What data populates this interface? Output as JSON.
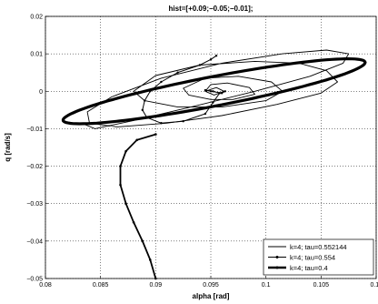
{
  "chart_data": {
    "type": "line",
    "title": "hist=[+0.09;−0.05;−0.01];",
    "xlabel": "alpha [rad]",
    "ylabel": "q [rad/s]",
    "xlim": [
      0.08,
      0.11
    ],
    "ylim": [
      -0.05,
      0.02
    ],
    "xticks": [
      0.08,
      0.085,
      0.09,
      0.095,
      0.1,
      0.105,
      0.11
    ],
    "xtick_labels": [
      "0.08",
      "0.085",
      "0.09",
      "0.095",
      "0.1",
      "0.105",
      "0.11"
    ],
    "yticks": [
      -0.05,
      -0.04,
      -0.03,
      -0.02,
      -0.01,
      0,
      0.01,
      0.02
    ],
    "ytick_labels": [
      "−0.05",
      "−0.04",
      "−0.03",
      "−0.02",
      "−0.01",
      "0",
      "0.01",
      "0.02"
    ],
    "grid": true,
    "legend_position": "bottom-right",
    "series": [
      {
        "name": "k=4; tau=0.552144",
        "style": "thin",
        "x": [
          0.0945,
          0.0955,
          0.0962,
          0.0953,
          0.0945,
          0.095,
          0.0965,
          0.0985,
          0.099,
          0.097,
          0.095,
          0.093,
          0.0925,
          0.0945,
          0.0975,
          0.1005,
          0.1015,
          0.1,
          0.096,
          0.092,
          0.089,
          0.088,
          0.09,
          0.094,
          0.099,
          0.103,
          0.1055,
          0.1065,
          0.105,
          0.101,
          0.096,
          0.091,
          0.0865,
          0.084,
          0.0838,
          0.086,
          0.0905,
          0.096,
          0.1015,
          0.1055,
          0.1075,
          0.107,
          0.104,
          0.099,
          0.0935,
          0.088,
          0.0845,
          0.0835
        ],
        "y": [
          0.0,
          0.001,
          0.0,
          -0.001,
          0.0,
          0.0018,
          0.0022,
          0.001,
          -0.0008,
          -0.0022,
          -0.0022,
          -0.001,
          0.0008,
          0.0035,
          0.004,
          0.0025,
          0.0,
          -0.0025,
          -0.0042,
          -0.0042,
          -0.0025,
          0.0,
          0.0042,
          0.007,
          0.008,
          0.0075,
          0.0055,
          0.0025,
          -0.0005,
          -0.0035,
          -0.0065,
          -0.0085,
          -0.0095,
          -0.0085,
          -0.0055,
          -0.0015,
          0.0035,
          0.0075,
          0.01,
          0.011,
          0.01,
          0.0075,
          0.004,
          0.0,
          -0.004,
          -0.0078,
          -0.01,
          -0.0088
        ]
      },
      {
        "name": "k=4; tau=0.554",
        "style": "dot-marker",
        "x": [
          0.0955,
          0.095,
          0.094,
          0.092,
          0.0905,
          0.0895,
          0.089,
          0.0888,
          0.0892,
          0.0905,
          0.0925,
          0.0945,
          0.0952,
          0.0958,
          0.0963,
          0.096,
          0.095,
          0.0945,
          0.0952
        ],
        "y": [
          0.0095,
          0.0085,
          0.007,
          0.005,
          0.0025,
          0.0,
          -0.0025,
          -0.005,
          -0.007,
          -0.0085,
          -0.008,
          -0.006,
          -0.003,
          -0.0005,
          0.0,
          -0.0005,
          0.0,
          0.0003,
          0.0
        ]
      },
      {
        "name": "k=4; tau=0.4",
        "style": "thick",
        "cx": 0.0953,
        "cy": 0.0,
        "a": 0.0137,
        "b": 0.004,
        "tilt": 0.0011,
        "entry_x": [
          0.09,
          0.0895,
          0.0888,
          0.088,
          0.0873,
          0.0868,
          0.0868,
          0.0873,
          0.0883,
          0.09
        ],
        "entry_y": [
          -0.05,
          -0.045,
          -0.04,
          -0.035,
          -0.03,
          -0.025,
          -0.02,
          -0.016,
          -0.013,
          -0.0115
        ]
      }
    ]
  }
}
